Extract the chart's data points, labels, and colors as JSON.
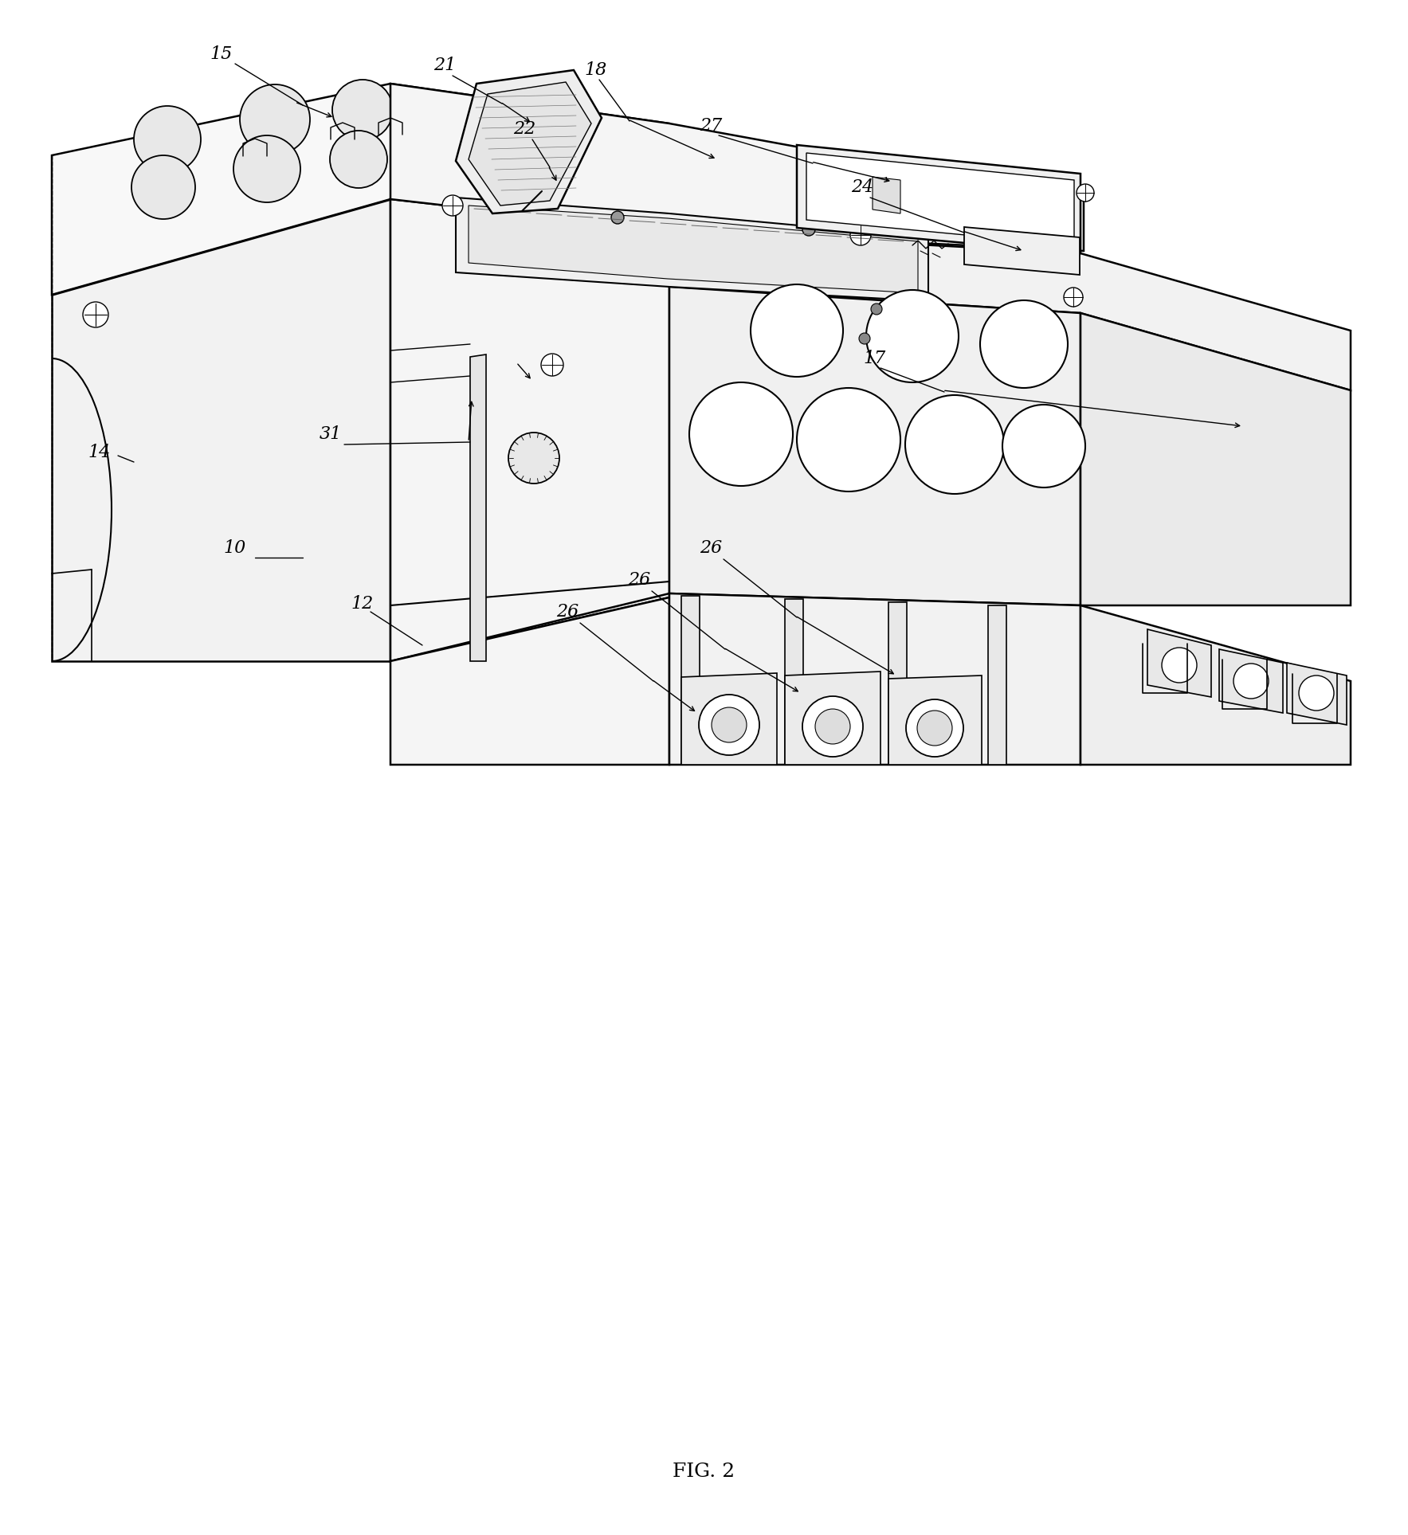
{
  "background_color": "#ffffff",
  "line_color": "#000000",
  "fig_label": "FIG. 2"
}
